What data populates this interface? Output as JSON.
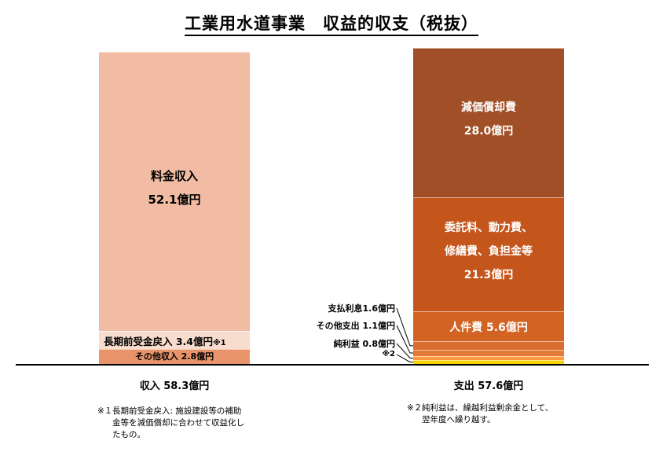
{
  "title": "工業用水道事業　収益的収支（税抜）",
  "chart_data": {
    "type": "stacked-bar",
    "unit": "億円",
    "categories": [
      "収入 58.3億円",
      "支出 57.6億円"
    ],
    "bars": [
      {
        "category": "収入 58.3億円",
        "total": 58.3,
        "segments": [
          {
            "name": "その他収入",
            "value": 2.8,
            "label": "その他収入 2.8億円",
            "color": "#e8936a"
          },
          {
            "name": "長期前受金戻入",
            "value": 3.4,
            "label": "長期前受金戻入 3.4億円",
            "label_suffix": "※1",
            "color": "#f8dccd"
          },
          {
            "name": "料金収入",
            "value": 52.1,
            "label": [
              "料金収入",
              "52.1億円"
            ],
            "color": "#f2bba3"
          }
        ]
      },
      {
        "category": "支出 57.6億円",
        "total": 57.6,
        "segments": [
          {
            "name": "※2",
            "value": 0.7,
            "color": "#f5d200"
          },
          {
            "name": "純利益",
            "value": 0.8,
            "label": "純利益 0.8億円",
            "color": "#ff9a40"
          },
          {
            "name": "その他支出",
            "value": 1.1,
            "label": "その他支出 1.1億円",
            "color": "#e27a3a"
          },
          {
            "name": "支払利息",
            "value": 1.6,
            "label": "支払利息1.6億円",
            "color": "#d86d2e"
          },
          {
            "name": "人件費",
            "value": 5.6,
            "label": "人件費 5.6億円",
            "color": "#d26322"
          },
          {
            "name": "委託料、動力費、修繕費、負担金等",
            "value": 21.3,
            "label": [
              "委託料、動力費、",
              "修繕費、負担金等",
              "21.3億円"
            ],
            "color": "#c4561c"
          },
          {
            "name": "減価償却費",
            "value": 28.0,
            "label": [
              "減価償却費",
              "28.0億円"
            ],
            "color": "#a04f26"
          }
        ]
      }
    ]
  },
  "notes": {
    "left": {
      "marker": "※１",
      "lines": [
        "長期前受金戻入: 施設建設等の補助",
        "金等を減価償却に合わせて収益化し",
        "たもの。"
      ]
    },
    "right": {
      "marker": "※２",
      "lines": [
        "純利益は、繰越利益剰余金として、",
        "翌年度へ繰り越す。"
      ]
    }
  }
}
